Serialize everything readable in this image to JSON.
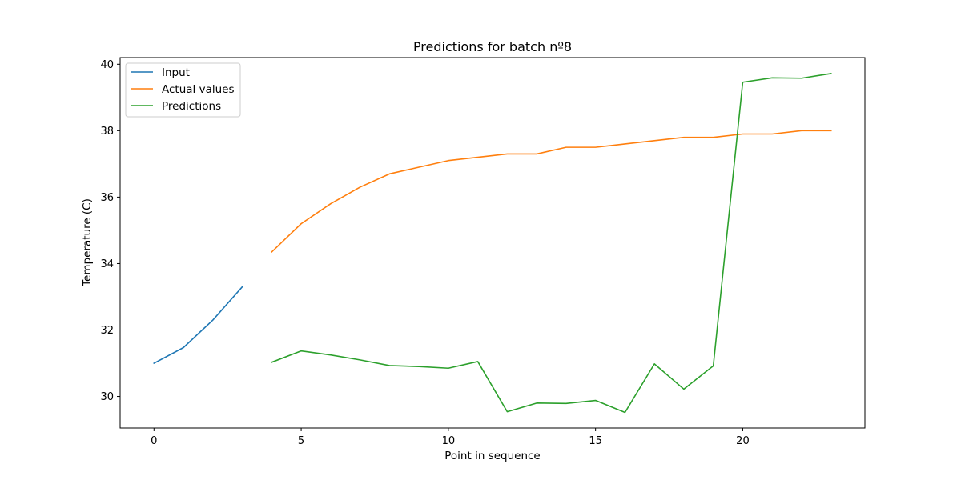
{
  "chart_data": {
    "type": "line",
    "title": "Predictions for batch nº8",
    "xlabel": "Point in sequence",
    "ylabel": "Temperature (C)",
    "xlim": [
      -1.15,
      24.15
    ],
    "ylim": [
      29.05,
      40.2
    ],
    "xticks": [
      0,
      5,
      10,
      15,
      20
    ],
    "yticks": [
      30,
      32,
      34,
      36,
      38,
      40
    ],
    "grid": false,
    "legend": "top-left",
    "series": [
      {
        "name": "Input",
        "color": "#1f77b4",
        "x": [
          0,
          1,
          2,
          3
        ],
        "y": [
          31.0,
          31.47,
          32.3,
          33.3
        ]
      },
      {
        "name": "Actual values",
        "color": "#ff7f0e",
        "x": [
          4,
          5,
          6,
          7,
          8,
          9,
          10,
          11,
          12,
          13,
          14,
          15,
          16,
          17,
          18,
          19,
          20,
          21,
          22,
          23
        ],
        "y": [
          34.35,
          35.2,
          35.8,
          36.3,
          36.7,
          36.9,
          37.1,
          37.2,
          37.3,
          37.3,
          37.5,
          37.5,
          37.6,
          37.7,
          37.8,
          37.8,
          37.9,
          37.9,
          38.0,
          38.0
        ]
      },
      {
        "name": "Predictions",
        "color": "#2ca02c",
        "x": [
          4,
          5,
          6,
          7,
          8,
          9,
          10,
          11,
          12,
          13,
          14,
          15,
          16,
          17,
          18,
          19,
          20,
          21,
          22,
          23
        ],
        "y": [
          31.03,
          31.37,
          31.25,
          31.1,
          30.93,
          30.9,
          30.85,
          31.05,
          29.54,
          29.8,
          29.79,
          29.88,
          29.52,
          30.98,
          30.22,
          30.92,
          39.46,
          39.59,
          39.58,
          39.72
        ]
      }
    ]
  }
}
